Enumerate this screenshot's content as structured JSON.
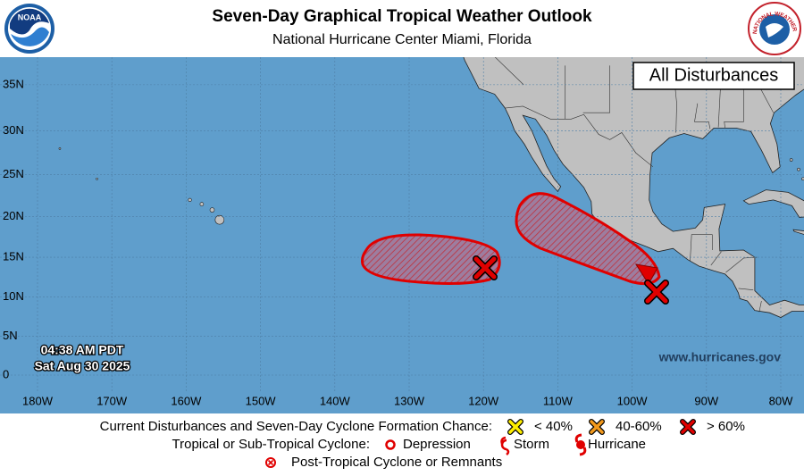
{
  "header": {
    "title": "Seven-Day Graphical Tropical Weather Outlook",
    "subtitle": "National Hurricane Center  Miami, Florida"
  },
  "logos": {
    "noaa": "NOAA",
    "nws": "NATIONAL WEATHER SERVICE"
  },
  "map": {
    "label": "All Disturbances",
    "lat_labels": [
      "35N",
      "30N",
      "25N",
      "20N",
      "15N",
      "10N",
      "5N",
      "0"
    ],
    "lon_labels": [
      "180W",
      "170W",
      "160W",
      "150W",
      "140W",
      "130W",
      "120W",
      "110W",
      "100W",
      "90W",
      "80W"
    ],
    "time": "04:38 AM PDT",
    "date": "Sat Aug 30 2025",
    "website": "www.hurricanes.gov"
  },
  "legend": {
    "row1_label": "Current Disturbances and Seven-Day Cyclone Formation Chance:",
    "low": "< 40%",
    "medium": "40-60%",
    "high": "> 60%",
    "row2_label": "Tropical or Sub-Tropical Cyclone:",
    "depression": "Depression",
    "storm": "Storm",
    "hurricane": "Hurricane",
    "post_tropical": "Post-Tropical Cyclone or Remnants"
  }
}
